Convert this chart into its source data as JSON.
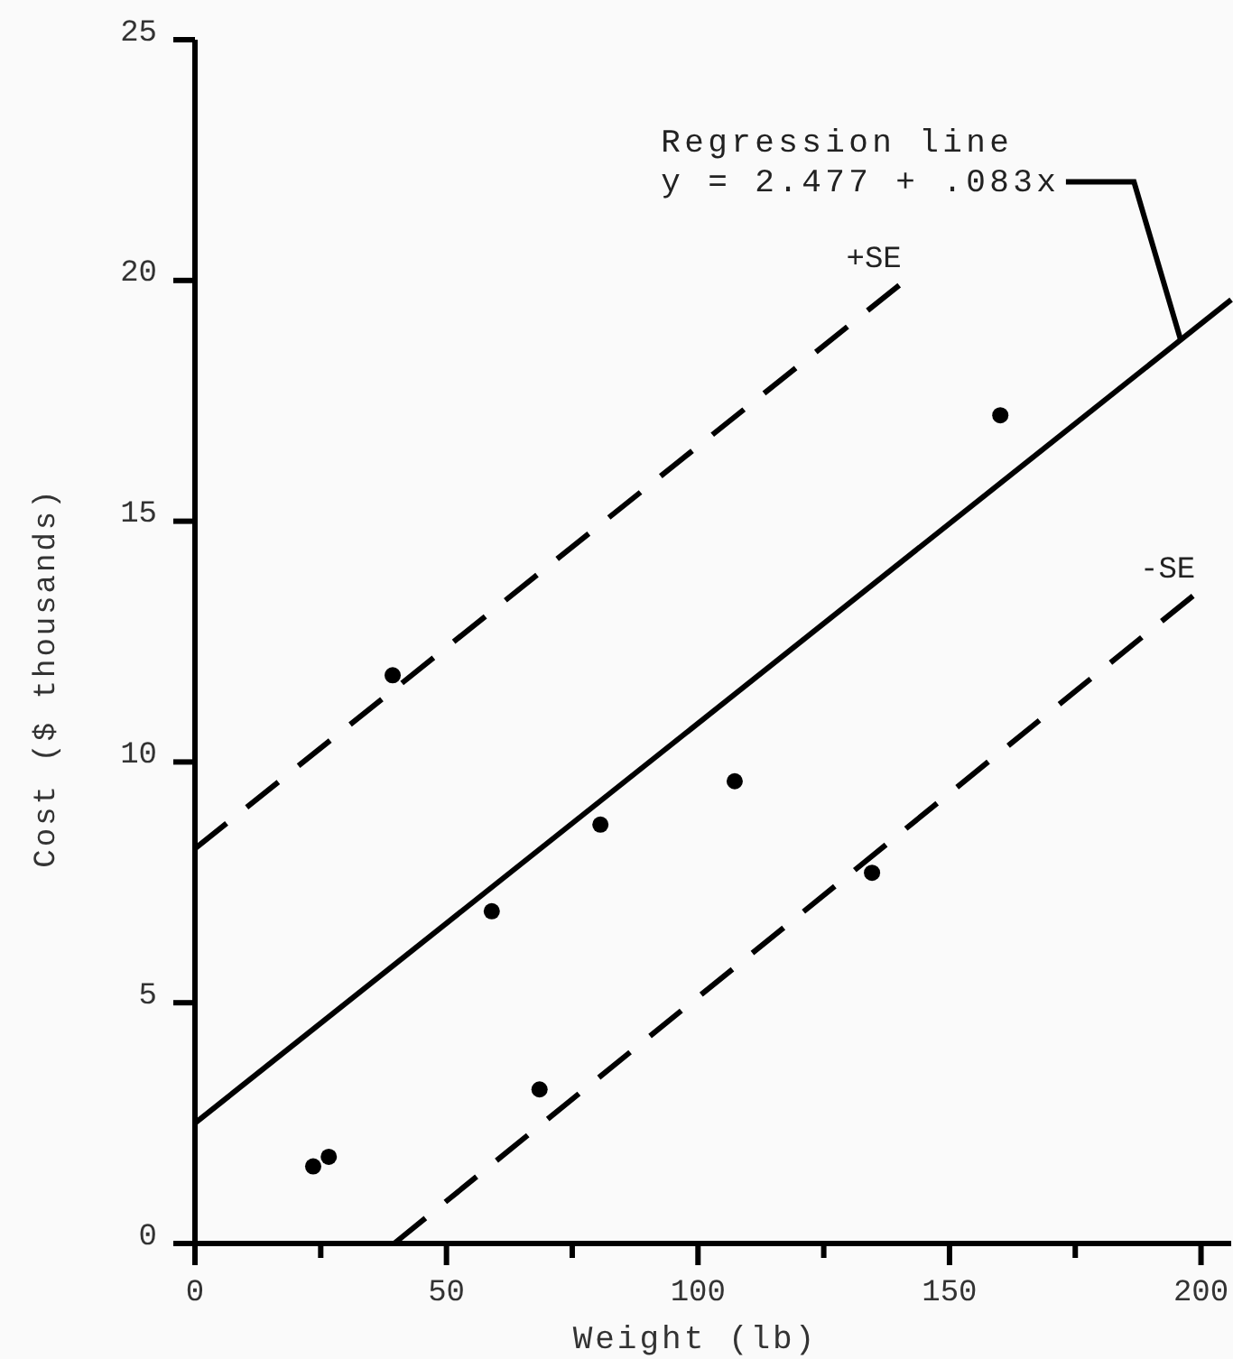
{
  "chart_data": {
    "type": "scatter",
    "xlabel": "Weight (lb)",
    "ylabel": "Cost ($ thousands)",
    "xlim": [
      0,
      206
    ],
    "ylim": [
      0,
      25
    ],
    "xticks": [
      0,
      {
        "value": 25,
        "label": null
      },
      50,
      {
        "value": 75,
        "label": null
      },
      100,
      {
        "value": 125,
        "label": null
      },
      150,
      {
        "value": 175,
        "label": null
      },
      200
    ],
    "yticks": [
      0,
      5,
      10,
      15,
      20,
      25
    ],
    "series": [
      {
        "color": "#000000",
        "marker": "circle",
        "x": [
          23.5,
          26.6,
          39.3,
          59.0,
          68.5,
          80.6,
          107.3,
          134.6,
          160.1
        ],
        "values": [
          1.6,
          1.8,
          11.8,
          6.9,
          3.2,
          8.7,
          9.6,
          7.7,
          17.2
        ]
      },
      {
        "type": "line",
        "color": "#000000",
        "line_style": "solid",
        "marker": "none",
        "x": [
          0,
          206
        ],
        "values": [
          2.5,
          19.6
        ]
      },
      {
        "type": "line",
        "name": "+SE",
        "color": "#000000",
        "line_style": "dashed",
        "marker": "none",
        "x": [
          0,
          140
        ],
        "values": [
          8.2,
          19.9
        ]
      },
      {
        "type": "line",
        "name": "-SE",
        "color": "#000000",
        "line_style": "dashed",
        "marker": "none",
        "x": [
          39.6,
          198.4
        ],
        "values": [
          0,
          13.45
        ]
      }
    ],
    "annotations": [
      {
        "text": "Regression line\ny = 2.477 + .083x",
        "x": 196,
        "y": 18.75
      }
    ]
  }
}
